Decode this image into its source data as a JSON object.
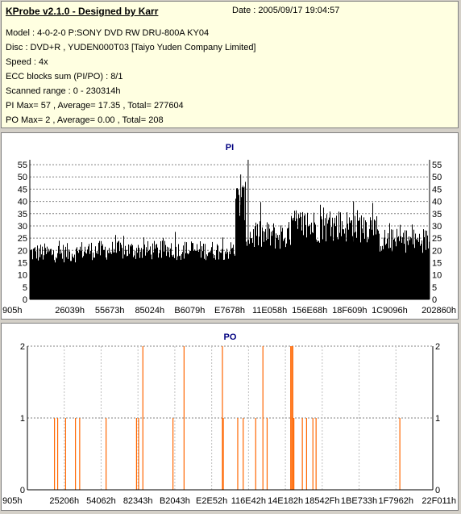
{
  "header": {
    "title": "KProbe v2.1.0 - Designed by Karr",
    "date": "Date : 2005/09/17 19:04:57",
    "lines": [
      "Model : 4-0-2-0 P:SONY    DVD RW DRU-800A  KY04",
      "Disc : DVD+R , YUDEN000T03 [Taiyo Yuden Company Limited]",
      "Speed : 4x",
      "ECC blocks sum (PI/PO) : 8/1",
      "Scanned range : 0 - 230314h",
      "PI Max= 57 , Average= 17.35 , Total= 277604",
      "PO Max= 2 , Average= 0.00 , Total= 208"
    ]
  },
  "chart_data": [
    {
      "type": "bar",
      "title": "PI",
      "xlabel": "",
      "ylabel": "",
      "ylim": [
        0,
        57
      ],
      "yticks": [
        0,
        5,
        10,
        15,
        20,
        25,
        30,
        35,
        40,
        45,
        50,
        55
      ],
      "xticks": [
        "905h",
        "26039h",
        "55673h",
        "85024h",
        "B6079h",
        "E7678h",
        "11E058h",
        "156E68h",
        "18F609h",
        "1C9096h",
        "202860h"
      ],
      "grid": "y-dashed",
      "color": "#000000",
      "x_range": [
        0,
        230314
      ],
      "segments": [
        {
          "x": [
            0,
            28000
          ],
          "avg": 19,
          "amp": 4
        },
        {
          "x": [
            28000,
            118000
          ],
          "avg": 20,
          "amp": 4
        },
        {
          "x": [
            118000,
            124000
          ],
          "avg": 40,
          "amp": 8
        },
        {
          "x": [
            124000,
            150000
          ],
          "avg": 26,
          "amp": 6
        },
        {
          "x": [
            150000,
            200000
          ],
          "avg": 30,
          "amp": 7
        },
        {
          "x": [
            200000,
            230314
          ],
          "avg": 24,
          "amp": 5
        }
      ],
      "peaks": [
        {
          "x": 121500,
          "y": 51
        },
        {
          "x": 125800,
          "y": 57
        },
        {
          "x": 124000,
          "y": 46
        },
        {
          "x": 186500,
          "y": 40
        }
      ]
    },
    {
      "type": "bar",
      "title": "PO",
      "xlabel": "",
      "ylabel": "",
      "ylim": [
        0,
        2
      ],
      "yticks": [
        0,
        1,
        2
      ],
      "xticks": [
        "905h",
        "25206h",
        "54062h",
        "82343h",
        "B2043h",
        "E2E52h",
        "116E42h",
        "14E182h",
        "18542Fh",
        "1BE733h",
        "1F7962h",
        "22F011h"
      ],
      "grid": "dashed",
      "color": "#ff6600",
      "x_range": [
        0,
        230314
      ],
      "spikes": [
        {
          "x": 15400,
          "y": 1
        },
        {
          "x": 17200,
          "y": 1
        },
        {
          "x": 21700,
          "y": 1
        },
        {
          "x": 27300,
          "y": 1
        },
        {
          "x": 29700,
          "y": 1
        },
        {
          "x": 44700,
          "y": 1
        },
        {
          "x": 62000,
          "y": 1
        },
        {
          "x": 63200,
          "y": 1
        },
        {
          "x": 65600,
          "y": 2
        },
        {
          "x": 82700,
          "y": 1
        },
        {
          "x": 89000,
          "y": 2
        },
        {
          "x": 110800,
          "y": 2
        },
        {
          "x": 111300,
          "y": 1
        },
        {
          "x": 119500,
          "y": 1
        },
        {
          "x": 122600,
          "y": 1
        },
        {
          "x": 129700,
          "y": 1
        },
        {
          "x": 133800,
          "y": 2
        },
        {
          "x": 136200,
          "y": 1
        },
        {
          "x": 149600,
          "y": 2
        },
        {
          "x": 150200,
          "y": 2
        },
        {
          "x": 150800,
          "y": 2
        },
        {
          "x": 151400,
          "y": 1
        },
        {
          "x": 156200,
          "y": 1
        },
        {
          "x": 158600,
          "y": 1
        },
        {
          "x": 162200,
          "y": 1
        },
        {
          "x": 164000,
          "y": 1
        },
        {
          "x": 211600,
          "y": 1
        }
      ]
    }
  ]
}
